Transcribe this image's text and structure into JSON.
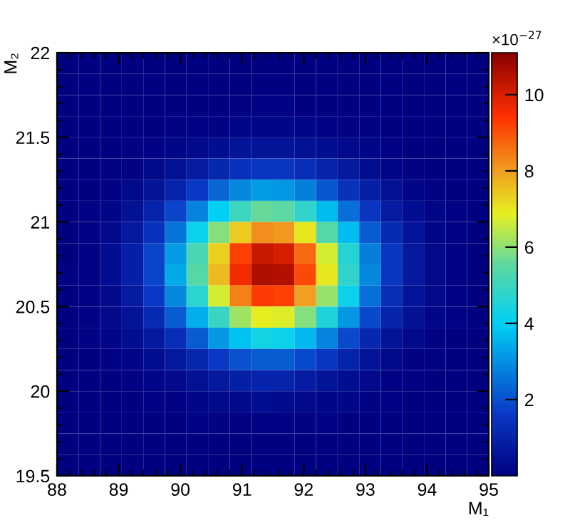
{
  "chart_data": {
    "type": "heatmap",
    "xlabel": "M₁",
    "ylabel": "M₂",
    "clabel": "×10$^{−27}$",
    "x": [
      88.175,
      88.525,
      88.875,
      89.225,
      89.575,
      89.925,
      90.275,
      90.625,
      90.975,
      91.325,
      91.675,
      92.025,
      92.375,
      92.725,
      93.075,
      93.425,
      93.775,
      94.125,
      94.475,
      94.825
    ],
    "y": [
      21.9375,
      21.8125,
      21.6875,
      21.5625,
      21.4375,
      21.3125,
      21.1875,
      21.0625,
      20.9375,
      20.8125,
      20.6875,
      20.5625,
      20.4375,
      20.3125,
      20.1875,
      20.0625,
      19.9375,
      19.8125,
      19.6875,
      19.5625
    ],
    "xlim": [
      88,
      95
    ],
    "ylim": [
      19.5,
      22
    ],
    "xticks": [
      88,
      89,
      90,
      91,
      92,
      93,
      94,
      95
    ],
    "yticks": [
      19.5,
      20,
      20.5,
      21,
      21.5,
      22
    ],
    "clim": [
      0,
      11.1
    ],
    "cticks": [
      2,
      4,
      6,
      8,
      10
    ],
    "grid": false,
    "cells": [
      [
        0,
        0,
        0,
        0,
        0,
        0,
        0,
        0,
        0,
        0,
        0,
        0,
        0,
        0,
        0,
        0,
        0,
        0,
        0,
        0
      ],
      [
        0,
        0,
        0,
        0,
        0,
        0,
        0,
        0,
        0,
        0,
        0,
        0,
        0,
        0,
        0,
        0,
        0,
        0,
        0,
        0
      ],
      [
        0,
        0,
        0,
        0,
        0,
        0,
        0,
        0,
        0.1,
        0.1,
        0.1,
        0,
        0,
        0,
        0,
        0,
        0,
        0,
        0,
        0
      ],
      [
        0,
        0,
        0,
        0,
        0,
        0.1,
        0.1,
        0.1,
        0.2,
        0.2,
        0.2,
        0.2,
        0.1,
        0.1,
        0.1,
        0,
        0,
        0,
        0,
        0
      ],
      [
        0,
        0,
        0,
        0.1,
        0.1,
        0.2,
        0.3,
        0.4,
        0.6,
        0.6,
        0.6,
        0.5,
        0.4,
        0.3,
        0.2,
        0.1,
        0,
        0,
        0,
        0
      ],
      [
        0,
        0,
        0.1,
        0.1,
        0.3,
        0.5,
        0.8,
        1.1,
        1.4,
        1.5,
        1.5,
        1.3,
        1.0,
        0.7,
        0.4,
        0.2,
        0.1,
        0,
        0,
        0
      ],
      [
        0,
        0,
        0.1,
        0.3,
        0.6,
        1.0,
        1.6,
        2.3,
        2.9,
        3.2,
        3.1,
        2.7,
        2.1,
        1.4,
        0.9,
        0.5,
        0.2,
        0.1,
        0,
        0
      ],
      [
        0,
        0.1,
        0.2,
        0.5,
        1.0,
        1.8,
        2.8,
        4.0,
        5.0,
        5.6,
        5.5,
        4.8,
        3.7,
        2.5,
        1.5,
        0.8,
        0.4,
        0.2,
        0.1,
        0
      ],
      [
        0,
        0.1,
        0.3,
        0.7,
        1.4,
        2.6,
        4.2,
        5.9,
        7.4,
        8.2,
        8.1,
        7.0,
        5.4,
        3.7,
        2.2,
        1.2,
        0.6,
        0.2,
        0.1,
        0
      ],
      [
        0,
        0.1,
        0.4,
        0.9,
        1.8,
        3.2,
        5.2,
        7.3,
        9.2,
        10.2,
        10.0,
        8.7,
        6.7,
        4.6,
        2.7,
        1.5,
        0.7,
        0.3,
        0.1,
        0
      ],
      [
        0.1,
        0.1,
        0.4,
        0.9,
        1.8,
        3.4,
        5.4,
        7.6,
        9.6,
        10.6,
        10.5,
        9.1,
        7.0,
        4.8,
        2.9,
        1.5,
        0.7,
        0.3,
        0.1,
        0
      ],
      [
        0,
        0.1,
        0.3,
        0.8,
        1.6,
        2.9,
        4.7,
        6.7,
        8.4,
        9.3,
        9.2,
        8.0,
        6.1,
        4.2,
        2.5,
        1.3,
        0.6,
        0.3,
        0.1,
        0
      ],
      [
        0,
        0.1,
        0.3,
        0.6,
        1.2,
        2.2,
        3.5,
        4.9,
        6.2,
        6.9,
        6.8,
        5.9,
        4.5,
        3.1,
        1.9,
        1.0,
        0.5,
        0.2,
        0.1,
        0
      ],
      [
        0,
        0.1,
        0.2,
        0.4,
        0.7,
        1.3,
        2.2,
        3.1,
        3.8,
        4.3,
        4.2,
        3.6,
        2.8,
        1.9,
        1.1,
        0.6,
        0.3,
        0.1,
        0,
        0
      ],
      [
        0,
        0,
        0.1,
        0.2,
        0.4,
        0.7,
        1.1,
        1.6,
        2.0,
        2.2,
        2.2,
        1.9,
        1.5,
        1.0,
        0.6,
        0.3,
        0.1,
        0.1,
        0,
        0
      ],
      [
        0,
        0,
        0,
        0.1,
        0.2,
        0.3,
        0.5,
        0.7,
        0.9,
        1.0,
        1.0,
        0.8,
        0.6,
        0.4,
        0.3,
        0.1,
        0.1,
        0,
        0,
        0
      ],
      [
        0,
        0,
        0,
        0,
        0.1,
        0.1,
        0.2,
        0.3,
        0.3,
        0.4,
        0.3,
        0.3,
        0.2,
        0.2,
        0.1,
        0.1,
        0,
        0,
        0,
        0
      ],
      [
        0,
        0,
        0,
        0,
        0,
        0,
        0.1,
        0.1,
        0.1,
        0.1,
        0.1,
        0.1,
        0.1,
        0,
        0,
        0,
        0,
        0,
        0,
        0
      ],
      [
        0,
        0,
        0,
        0,
        0,
        0,
        0,
        0,
        0,
        0,
        0,
        0,
        0,
        0,
        0,
        0,
        0,
        0,
        0,
        0
      ],
      [
        0,
        0,
        0,
        0,
        0,
        0,
        0,
        0,
        0,
        0,
        0,
        0,
        0,
        0,
        0,
        0,
        0,
        0,
        0,
        0
      ]
    ]
  }
}
